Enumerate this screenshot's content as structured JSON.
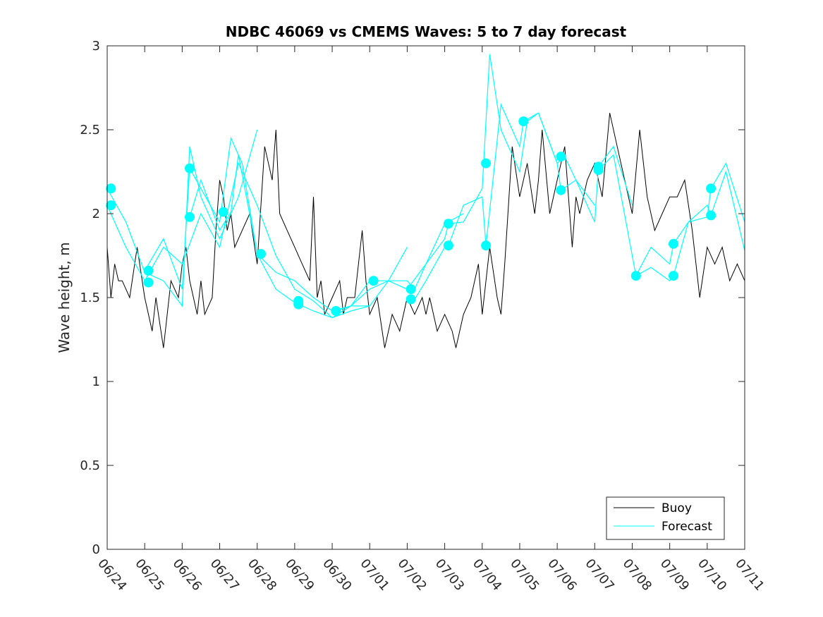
{
  "chart_data": {
    "type": "line",
    "title": "NDBC 46069 vs CMEMS Waves: 5 to 7 day forecast",
    "xlabel": "",
    "ylabel": "Wave height, m",
    "ylim": [
      0,
      3
    ],
    "xlim": [
      0,
      17
    ],
    "yticks": [
      0,
      0.5,
      1,
      1.5,
      2,
      2.5,
      3
    ],
    "ytick_labels": [
      "0",
      "0.5",
      "1",
      "1.5",
      "2",
      "2.5",
      "3"
    ],
    "xtick_labels": [
      "06/24",
      "06/25",
      "06/26",
      "06/27",
      "06/28",
      "06/29",
      "06/30",
      "07/01",
      "07/02",
      "07/03",
      "07/04",
      "07/05",
      "07/06",
      "07/07",
      "07/08",
      "07/09",
      "07/10",
      "07/11"
    ],
    "grid": false,
    "legend_position": "bottom-right",
    "colors": {
      "buoy": "#000000",
      "forecast": "#00ffff",
      "axes": "#262626"
    },
    "legend": [
      {
        "label": "Buoy",
        "color": "#000000"
      },
      {
        "label": "Forecast",
        "color": "#00ffff"
      }
    ],
    "series": [
      {
        "name": "Buoy",
        "color": "#000000",
        "x": [
          0,
          0.1,
          0.2,
          0.3,
          0.4,
          0.6,
          0.8,
          1.0,
          1.2,
          1.3,
          1.5,
          1.7,
          1.9,
          2.0,
          2.1,
          2.2,
          2.3,
          2.4,
          2.5,
          2.6,
          2.8,
          2.9,
          3.0,
          3.1,
          3.2,
          3.3,
          3.4,
          3.6,
          3.8,
          4.0,
          4.2,
          4.4,
          4.5,
          4.6,
          4.8,
          5.0,
          5.2,
          5.4,
          5.5,
          5.6,
          5.7,
          5.8,
          6.0,
          6.2,
          6.3,
          6.4,
          6.6,
          6.8,
          6.9,
          7.0,
          7.2,
          7.4,
          7.6,
          7.8,
          8.0,
          8.2,
          8.4,
          8.5,
          8.6,
          8.8,
          9.0,
          9.2,
          9.3,
          9.5,
          9.7,
          9.9,
          10.0,
          10.2,
          10.4,
          10.5,
          10.6,
          10.8,
          11.0,
          11.2,
          11.4,
          11.5,
          11.6,
          11.8,
          12.0,
          12.2,
          12.4,
          12.5,
          12.6,
          12.8,
          13.0,
          13.2,
          13.4,
          13.6,
          13.8,
          14.0,
          14.2,
          14.4,
          14.6,
          14.8,
          15.0,
          15.2,
          15.4,
          15.6,
          15.8,
          16.0,
          16.2,
          16.4,
          16.6,
          16.8,
          17.0
        ],
        "y": [
          1.8,
          1.5,
          1.7,
          1.6,
          1.6,
          1.5,
          1.8,
          1.5,
          1.3,
          1.5,
          1.2,
          1.6,
          1.5,
          1.7,
          1.8,
          1.6,
          1.5,
          1.4,
          1.6,
          1.4,
          1.5,
          1.9,
          2.2,
          2.1,
          1.9,
          2.0,
          1.8,
          1.9,
          2.0,
          1.7,
          2.4,
          2.2,
          2.5,
          2.0,
          1.9,
          1.8,
          1.7,
          1.6,
          2.1,
          1.5,
          1.6,
          1.4,
          1.5,
          1.6,
          1.4,
          1.5,
          1.5,
          1.9,
          1.6,
          1.4,
          1.5,
          1.2,
          1.4,
          1.3,
          1.5,
          1.4,
          1.5,
          1.4,
          1.5,
          1.3,
          1.4,
          1.3,
          1.2,
          1.4,
          1.5,
          1.7,
          1.4,
          1.8,
          1.5,
          1.4,
          1.7,
          2.4,
          2.1,
          2.3,
          2.0,
          2.2,
          2.5,
          2.0,
          2.2,
          2.4,
          1.8,
          2.1,
          2.0,
          2.2,
          2.3,
          2.1,
          2.6,
          2.4,
          2.2,
          2.0,
          2.5,
          2.1,
          1.9,
          2.0,
          2.1,
          2.1,
          2.2,
          1.9,
          1.5,
          1.8,
          1.7,
          1.8,
          1.6,
          1.7,
          1.6
        ]
      },
      {
        "name": "Forecast",
        "color": "#00ffff",
        "x": [
          0,
          0.5,
          1.0,
          1.5,
          2.0,
          2.2,
          2.5,
          3.0,
          3.5,
          4.0
        ],
        "y": [
          2.15,
          1.95,
          1.65,
          1.6,
          1.45,
          2.4,
          2.1,
          1.85,
          2.1,
          2.5
        ]
      },
      {
        "name": "Forecast",
        "color": "#00ffff",
        "x": [
          0,
          0.5,
          1.0,
          1.5,
          2.0,
          2.5,
          3.0,
          3.5,
          4.0,
          4.5,
          5.0,
          5.5,
          6.0,
          6.5,
          7.0
        ],
        "y": [
          2.05,
          1.8,
          1.6,
          1.8,
          1.7,
          2.0,
          1.8,
          2.3,
          2.05,
          1.75,
          1.55,
          1.48,
          1.38,
          1.42,
          1.45
        ]
      },
      {
        "name": "Forecast",
        "color": "#00ffff",
        "x": [
          1.0,
          1.5,
          2.0,
          2.2,
          2.5,
          3.0,
          3.3,
          3.6,
          4.0,
          4.5,
          5.0,
          5.5,
          6.0,
          6.5,
          7.0,
          7.5,
          8.0
        ],
        "y": [
          1.66,
          1.85,
          1.55,
          2.27,
          2.15,
          1.95,
          2.45,
          2.3,
          1.76,
          1.65,
          1.6,
          1.5,
          1.42,
          1.45,
          1.55,
          1.6,
          1.8
        ]
      },
      {
        "name": "Forecast",
        "color": "#00ffff",
        "x": [
          2.2,
          2.5,
          3.0,
          3.3,
          3.5,
          4.0,
          4.5,
          5.0,
          5.5,
          6.0,
          6.5,
          7.0,
          7.5,
          8.0,
          8.5,
          9.0,
          9.5
        ],
        "y": [
          1.98,
          2.2,
          1.9,
          2.01,
          2.35,
          1.76,
          1.55,
          1.47,
          1.42,
          1.38,
          1.45,
          1.6,
          1.6,
          1.55,
          1.7,
          1.94,
          2.0
        ]
      },
      {
        "name": "Forecast",
        "color": "#00ffff",
        "x": [
          6.1,
          6.5,
          7.0,
          7.5,
          8.0,
          8.2,
          8.5,
          9.0,
          9.1,
          9.5,
          10.0,
          10.2,
          10.5,
          11.0,
          11.2,
          11.5,
          12.0,
          12.2,
          12.5,
          13.0
        ],
        "y": [
          1.42,
          1.45,
          1.45,
          1.6,
          1.6,
          1.55,
          1.7,
          1.85,
          1.94,
          1.95,
          2.15,
          2.95,
          2.5,
          2.25,
          2.55,
          2.6,
          2.3,
          2.34,
          2.2,
          2.05
        ]
      },
      {
        "name": "Forecast",
        "color": "#00ffff",
        "x": [
          8.2,
          8.5,
          9.0,
          9.1,
          9.5,
          10.0,
          10.1,
          10.5,
          11.0,
          11.1,
          11.5,
          12.0,
          12.1,
          12.5,
          13.0,
          13.1,
          13.5,
          14.0
        ],
        "y": [
          1.49,
          1.6,
          1.8,
          1.81,
          2.05,
          2.1,
          1.81,
          2.65,
          2.4,
          2.55,
          2.6,
          2.3,
          2.14,
          2.2,
          1.95,
          2.28,
          2.4,
          2.05
        ]
      },
      {
        "name": "Forecast",
        "color": "#00ffff",
        "x": [
          13.1,
          13.5,
          14.0,
          14.1,
          14.5,
          15.0,
          15.1,
          15.5,
          16.0,
          16.1,
          16.5,
          17.0
        ],
        "y": [
          2.26,
          2.35,
          1.75,
          1.63,
          1.8,
          1.7,
          1.82,
          1.95,
          2.05,
          1.99,
          2.25,
          1.78
        ]
      },
      {
        "name": "Forecast",
        "color": "#00ffff",
        "x": [
          14.1,
          14.5,
          15.0,
          15.1,
          15.5,
          16.0,
          16.1,
          16.5,
          17.0
        ],
        "y": [
          1.63,
          1.68,
          1.6,
          1.63,
          1.95,
          1.98,
          2.15,
          2.3,
          1.95
        ]
      }
    ],
    "markers": [
      {
        "x": 0.1,
        "y": 2.15
      },
      {
        "x": 0.1,
        "y": 2.05
      },
      {
        "x": 1.1,
        "y": 1.66
      },
      {
        "x": 1.1,
        "y": 1.59
      },
      {
        "x": 2.2,
        "y": 2.27
      },
      {
        "x": 2.2,
        "y": 1.98
      },
      {
        "x": 3.1,
        "y": 2.01
      },
      {
        "x": 4.1,
        "y": 1.76
      },
      {
        "x": 5.1,
        "y": 1.48
      },
      {
        "x": 5.1,
        "y": 1.46
      },
      {
        "x": 6.1,
        "y": 1.42
      },
      {
        "x": 7.1,
        "y": 1.6
      },
      {
        "x": 8.1,
        "y": 1.55
      },
      {
        "x": 8.1,
        "y": 1.49
      },
      {
        "x": 9.1,
        "y": 1.94
      },
      {
        "x": 9.1,
        "y": 1.81
      },
      {
        "x": 10.1,
        "y": 2.3
      },
      {
        "x": 10.1,
        "y": 1.81
      },
      {
        "x": 11.1,
        "y": 2.55
      },
      {
        "x": 12.1,
        "y": 2.34
      },
      {
        "x": 12.1,
        "y": 2.14
      },
      {
        "x": 13.1,
        "y": 2.28
      },
      {
        "x": 13.1,
        "y": 2.26
      },
      {
        "x": 14.1,
        "y": 1.63
      },
      {
        "x": 15.1,
        "y": 1.82
      },
      {
        "x": 15.1,
        "y": 1.63
      },
      {
        "x": 16.1,
        "y": 2.15
      },
      {
        "x": 16.1,
        "y": 1.99
      }
    ]
  }
}
